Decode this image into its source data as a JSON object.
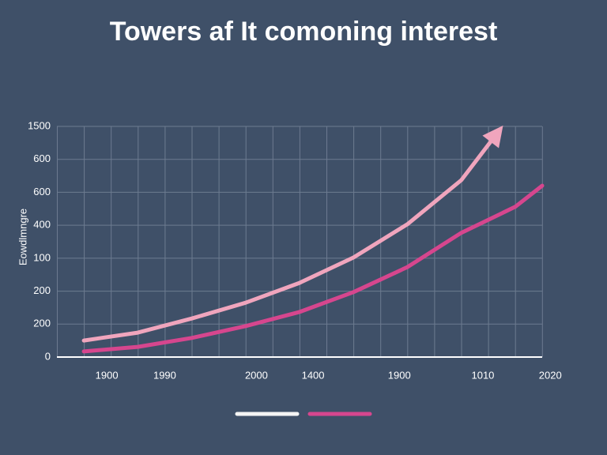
{
  "chart_data": {
    "type": "line",
    "title": "Towers af It comoning interest",
    "y_label": "Eowdlmngre",
    "xlim": [
      0,
      18
    ],
    "ylim": [
      0,
      7
    ],
    "yticks": [
      0,
      {
        "value": 1,
        "label": "200"
      },
      {
        "value": 2,
        "label": "200"
      },
      {
        "value": 3,
        "label": "100"
      },
      {
        "value": 4,
        "label": "400"
      },
      {
        "value": 5,
        "label": "600"
      },
      {
        "value": 6,
        "label": "600"
      },
      {
        "value": 7,
        "label": "1500"
      }
    ],
    "xticks": [
      {
        "value": 1.85,
        "label": "1900"
      },
      {
        "value": 4,
        "label": "1990"
      },
      {
        "value": 7.4,
        "label": "2000"
      },
      {
        "value": 9.5,
        "label": "1400"
      },
      {
        "value": 12.7,
        "label": "1900"
      },
      {
        "value": 15.8,
        "label": "1010"
      },
      {
        "value": 18.3,
        "label": "2020"
      }
    ],
    "grid": true,
    "legend": {
      "colors": [
        "#f4f4f4",
        "#d6468e"
      ]
    },
    "series": [
      {
        "color": "#f0a5bd",
        "arrow": true,
        "x": [
          1,
          3,
          5,
          7,
          9,
          11,
          13,
          15,
          16.3
        ],
        "values": [
          0.5,
          0.74,
          1.17,
          1.65,
          2.25,
          3.02,
          4.03,
          5.37,
          6.76
        ]
      },
      {
        "color": "#d6468e",
        "arrow": false,
        "x": [
          1,
          3,
          5,
          7,
          9,
          11,
          13,
          15,
          17,
          18
        ],
        "values": [
          0.17,
          0.31,
          0.58,
          0.94,
          1.37,
          1.97,
          2.73,
          3.77,
          4.56,
          5.2
        ]
      }
    ]
  }
}
